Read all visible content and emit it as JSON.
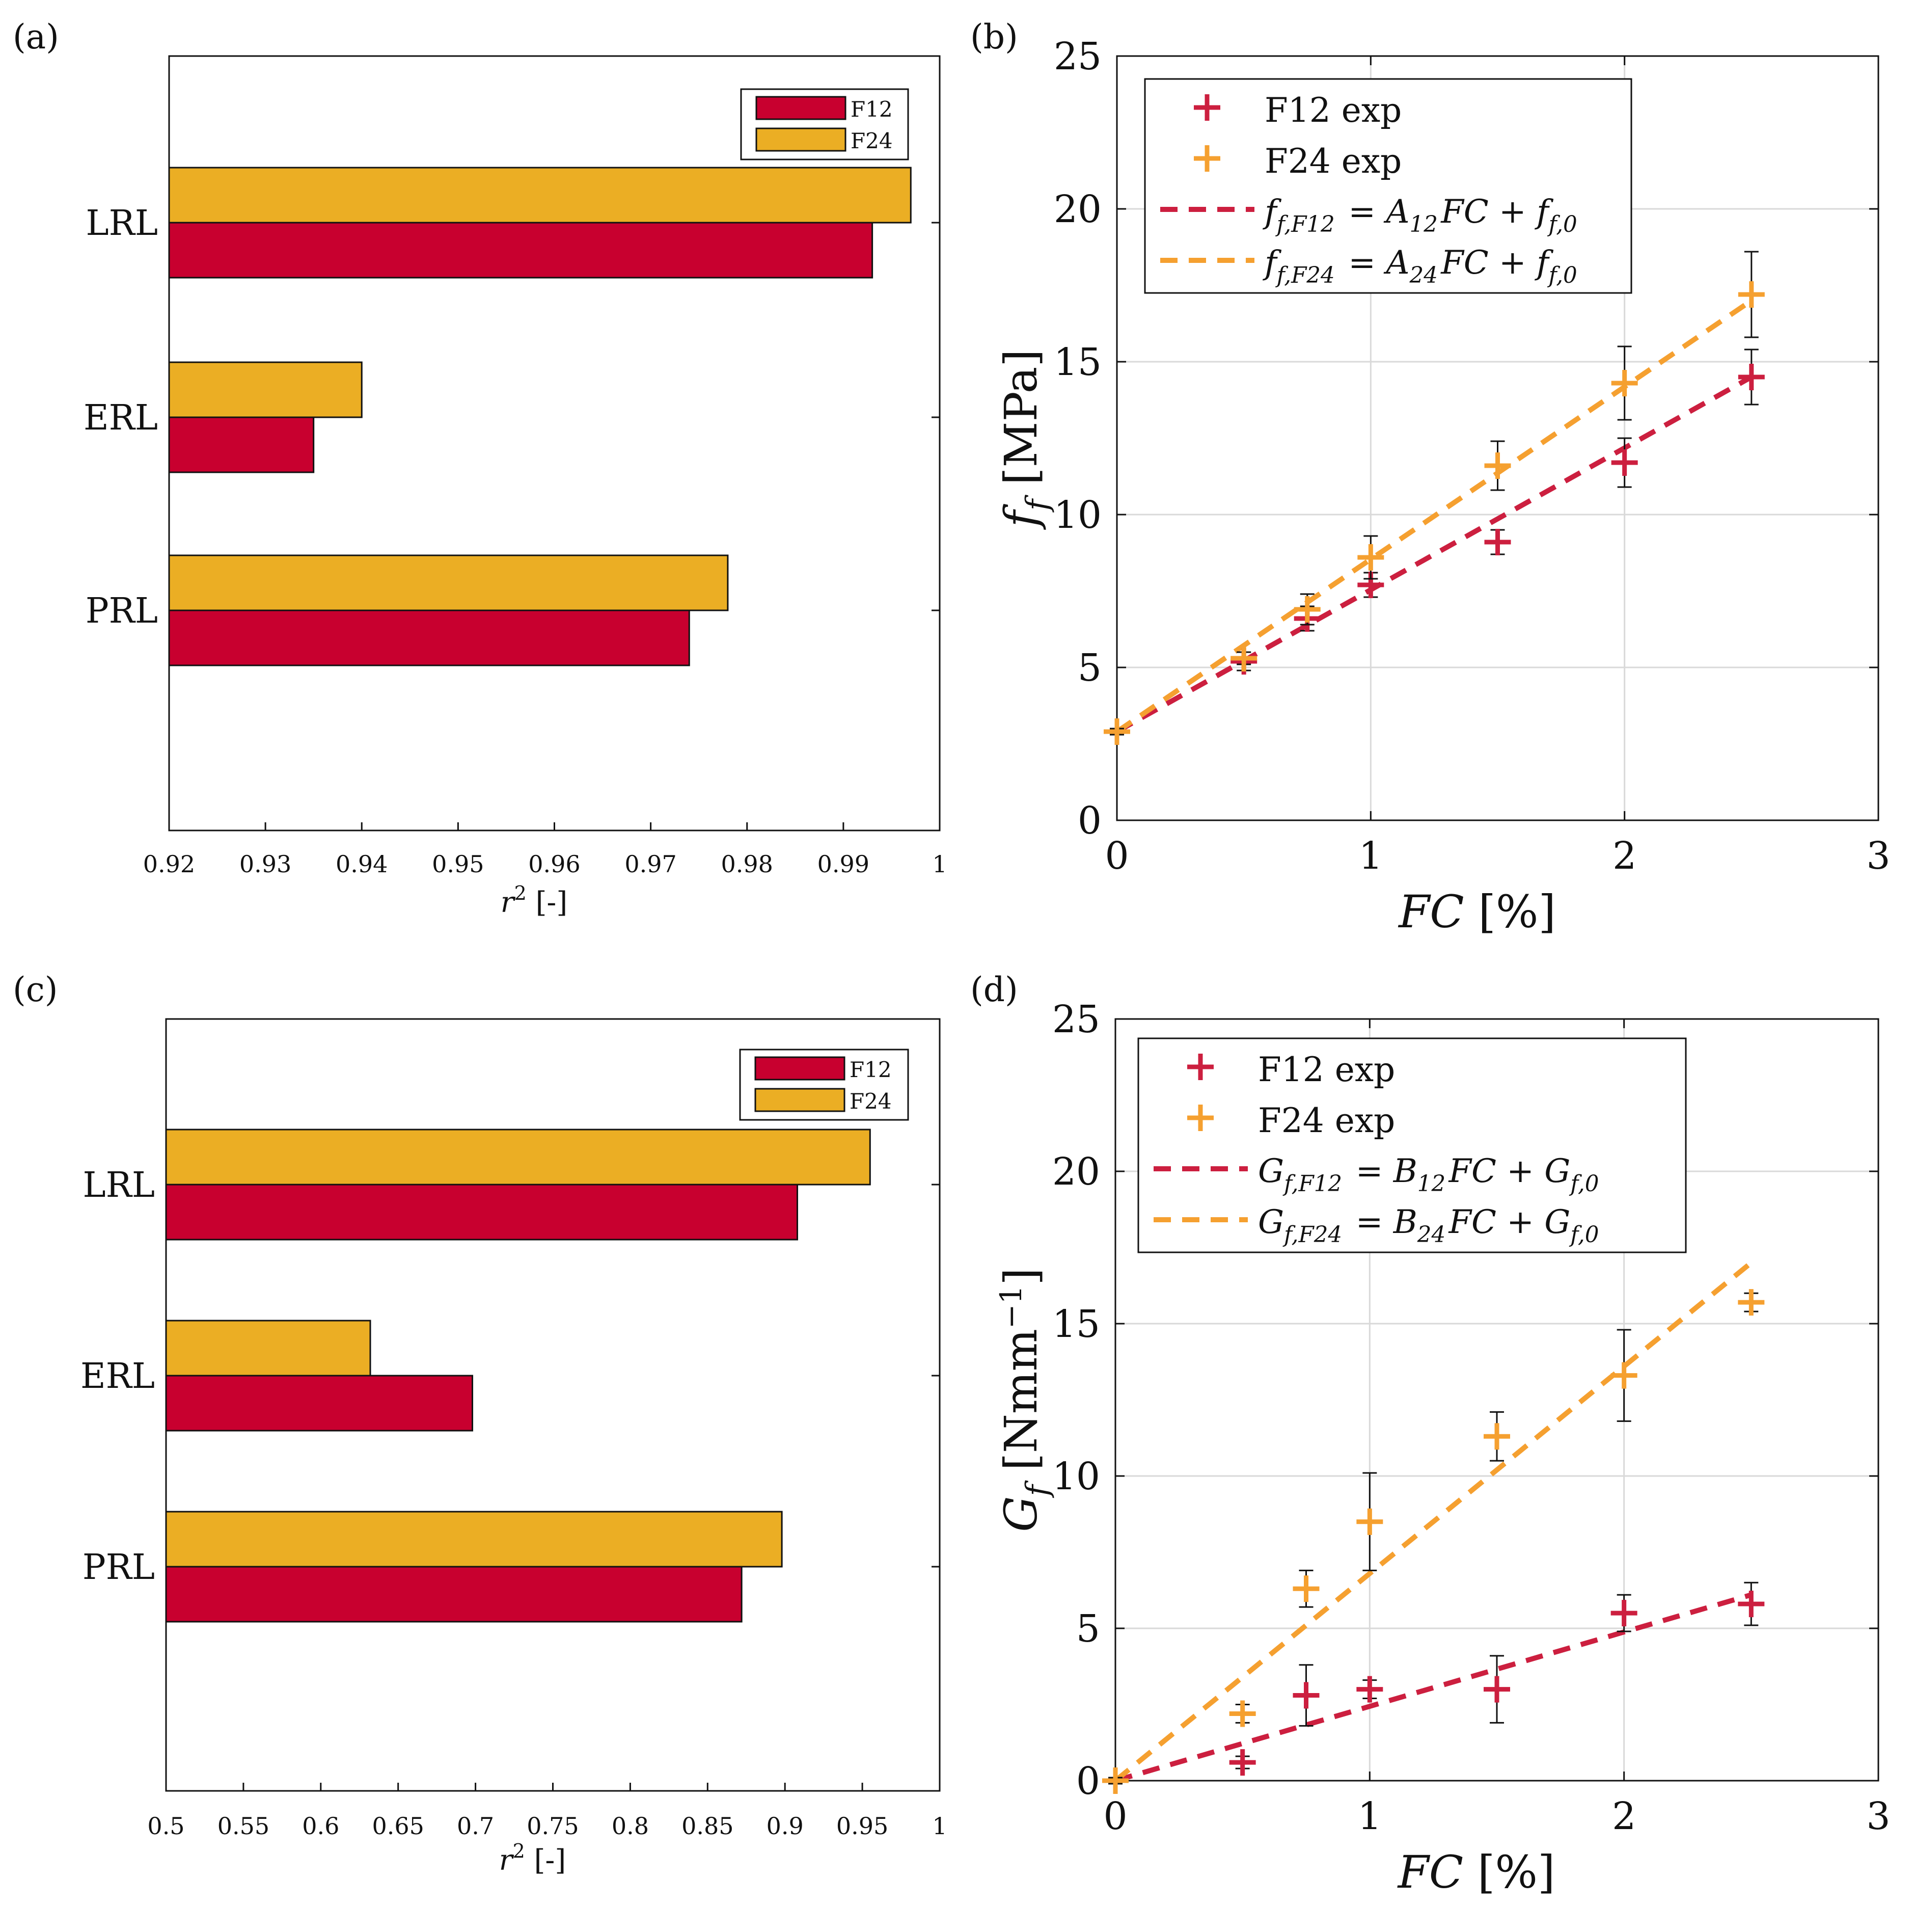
{
  "colors": {
    "f12": "#c8002f",
    "f24": "#ebae24",
    "f12_line": "#cc1f3f",
    "f24_line": "#f5a030",
    "errorbar": "#111111",
    "grid": "#d9d9d9"
  },
  "chart_data": [
    {
      "panel": "(a)",
      "type": "bar",
      "orientation": "horizontal",
      "categories": [
        "LRL",
        "ERL",
        "PRL"
      ],
      "series": [
        {
          "name": "F12",
          "values": [
            0.993,
            0.935,
            0.974
          ]
        },
        {
          "name": "F24",
          "values": [
            0.997,
            0.94,
            0.978
          ]
        }
      ],
      "xlim": [
        0.92,
        1.0
      ],
      "xticks": [
        "0.92",
        "0.93",
        "0.94",
        "0.95",
        "0.96",
        "0.97",
        "0.98",
        "0.99",
        "1"
      ],
      "xlabel": {
        "var": "r",
        "sup": "2",
        "unit": " [-]"
      },
      "legend": [
        "F12",
        "F24"
      ],
      "legend_position": "top-right"
    },
    {
      "panel": "(b)",
      "type": "scatter",
      "x": [
        0,
        0.5,
        0.75,
        1.0,
        1.5,
        2.0,
        2.5
      ],
      "series": [
        {
          "name": "F12 exp",
          "y": [
            2.9,
            5.2,
            6.6,
            7.7,
            9.1,
            11.7,
            14.5
          ],
          "err": [
            0.1,
            0.3,
            0.4,
            0.4,
            0.4,
            0.8,
            0.9
          ]
        },
        {
          "name": "F24 exp",
          "y": [
            2.9,
            5.3,
            6.9,
            8.6,
            11.6,
            14.3,
            17.2
          ],
          "err": [
            0.1,
            0.2,
            0.5,
            0.7,
            0.8,
            1.2,
            1.4
          ]
        }
      ],
      "fits": [
        {
          "name": "F12 fit",
          "x": [
            0,
            2.5
          ],
          "y": [
            2.9,
            14.5
          ]
        },
        {
          "name": "F24 fit",
          "x": [
            0,
            2.5
          ],
          "y": [
            2.9,
            17.0
          ]
        }
      ],
      "legend": [
        "F12 exp",
        "F24 exp",
        "f_{f,F12} = A_{12}FC + f_{f,0}",
        "f_{f,F24} = A_{24}FC + f_{f,0}"
      ],
      "legend_position": "top-left",
      "xlim": [
        0,
        3
      ],
      "ylim": [
        0,
        25
      ],
      "xticks": [
        "0",
        "1",
        "2",
        "3"
      ],
      "yticks": [
        "0",
        "5",
        "10",
        "15",
        "20",
        "25"
      ],
      "xlabel": {
        "var": "FC",
        "unit": " [%]"
      },
      "ylabel": {
        "var": "f",
        "sub": "f",
        "unit": " [MPa]"
      },
      "grid": true
    },
    {
      "panel": "(c)",
      "type": "bar",
      "orientation": "horizontal",
      "categories": [
        "LRL",
        "ERL",
        "PRL"
      ],
      "series": [
        {
          "name": "F12",
          "values": [
            0.908,
            0.698,
            0.872
          ]
        },
        {
          "name": "F24",
          "values": [
            0.955,
            0.632,
            0.898
          ]
        }
      ],
      "xlim": [
        0.5,
        1.0
      ],
      "xticks": [
        "0.5",
        "0.55",
        "0.6",
        "0.65",
        "0.7",
        "0.75",
        "0.8",
        "0.85",
        "0.9",
        "0.95",
        "1"
      ],
      "xlabel": {
        "var": "r",
        "sup": "2",
        "unit": " [-]"
      },
      "legend": [
        "F12",
        "F24"
      ],
      "legend_position": "top-right"
    },
    {
      "panel": "(d)",
      "type": "scatter",
      "x": [
        0,
        0.5,
        0.75,
        1.0,
        1.5,
        2.0,
        2.5
      ],
      "series": [
        {
          "name": "F12 exp",
          "y": [
            0.0,
            0.6,
            2.8,
            3.0,
            3.0,
            5.5,
            5.8
          ],
          "err": [
            0.1,
            0.2,
            1.0,
            0.3,
            1.1,
            0.6,
            0.7
          ]
        },
        {
          "name": "F24 exp",
          "y": [
            0.0,
            2.2,
            6.3,
            8.5,
            11.3,
            13.3,
            15.7
          ],
          "err": [
            0.1,
            0.3,
            0.6,
            1.6,
            0.8,
            1.5,
            0.3
          ]
        }
      ],
      "fits": [
        {
          "name": "F12 fit",
          "x": [
            0,
            2.5
          ],
          "y": [
            0.0,
            6.1
          ]
        },
        {
          "name": "F24 fit",
          "x": [
            0,
            2.5
          ],
          "y": [
            0.0,
            17.0
          ]
        }
      ],
      "legend": [
        "F12 exp",
        "F24 exp",
        "G_{f,F12} = B_{12}FC + G_{f,0}",
        "G_{f,F24} = B_{24}FC + G_{f,0}"
      ],
      "legend_position": "top-left",
      "xlim": [
        0,
        3
      ],
      "ylim": [
        0,
        25
      ],
      "xticks": [
        "0",
        "1",
        "2",
        "3"
      ],
      "yticks": [
        "0",
        "5",
        "10",
        "15",
        "20",
        "25"
      ],
      "xlabel": {
        "var": "FC",
        "unit": " [%]"
      },
      "ylabel": {
        "var": "G",
        "sub": "f",
        "unit": " [Nmm",
        "unit_sup": "−1",
        "unit_end": "]"
      },
      "grid": true
    }
  ]
}
